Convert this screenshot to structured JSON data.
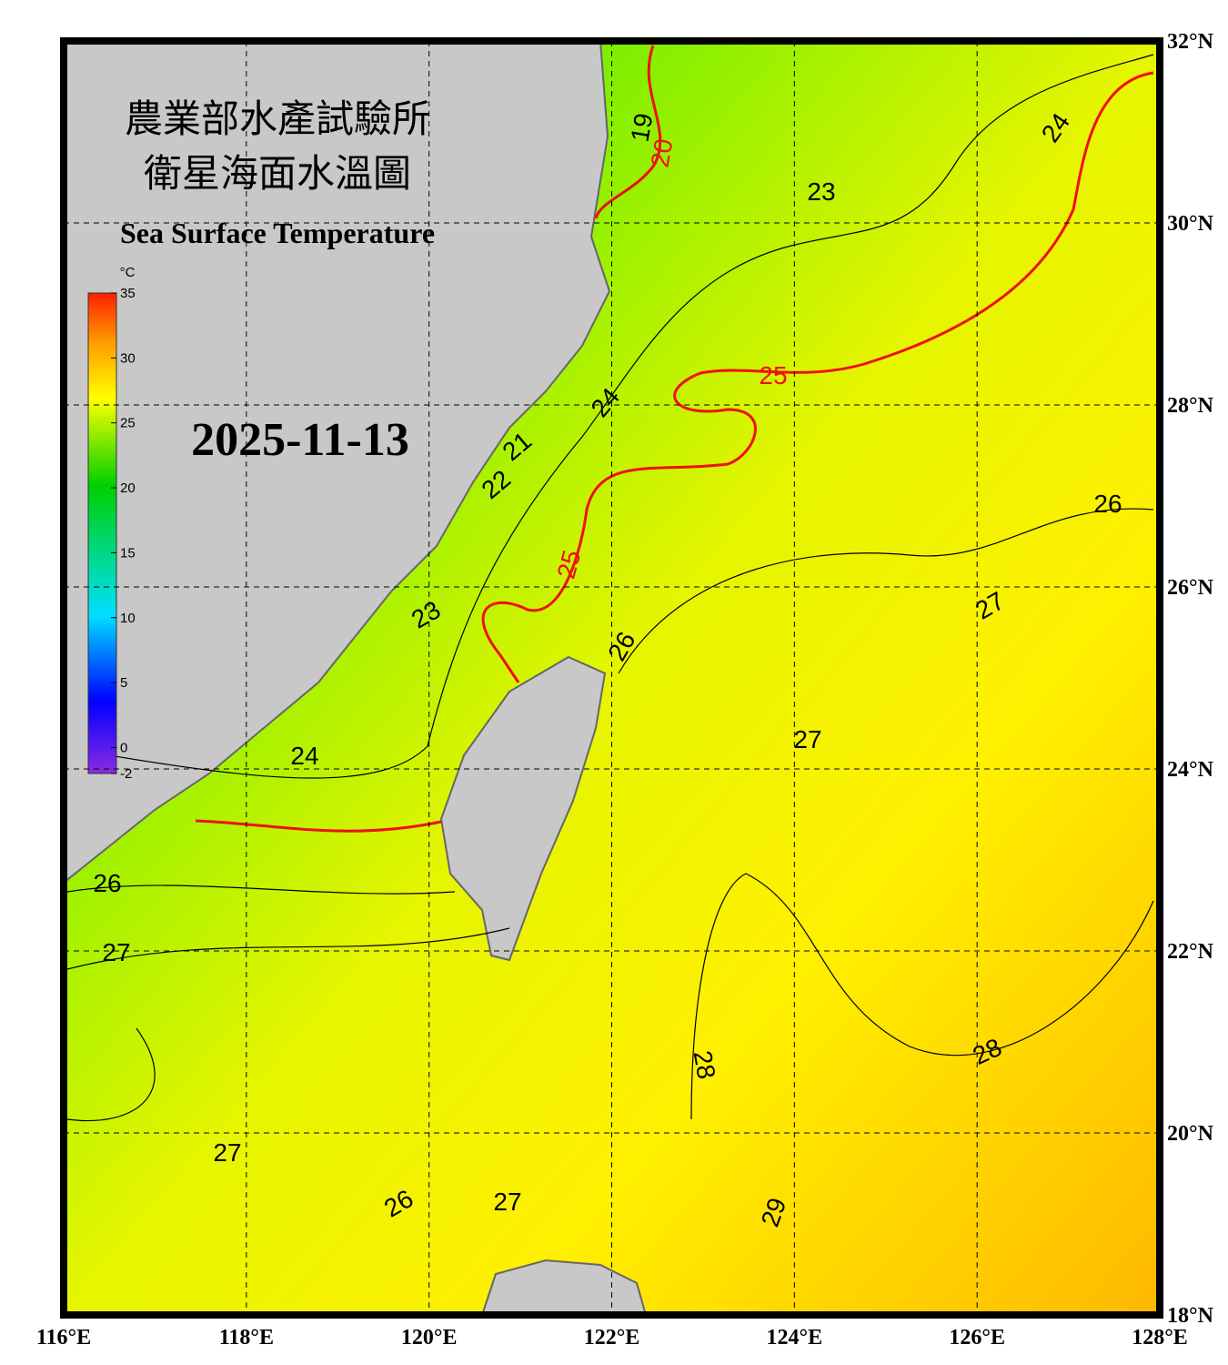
{
  "map": {
    "title_zh_line1": "農業部水產試驗所",
    "title_zh_line2": "衛星海面水溫圖",
    "title_en": "Sea Surface Temperature",
    "date": "2025-11-13",
    "lon_range": [
      116,
      128
    ],
    "lat_range": [
      18,
      32
    ],
    "lon_ticks": [
      {
        "value": 116,
        "label": "116°E"
      },
      {
        "value": 118,
        "label": "118°E"
      },
      {
        "value": 120,
        "label": "120°E"
      },
      {
        "value": 122,
        "label": "122°E"
      },
      {
        "value": 124,
        "label": "124°E"
      },
      {
        "value": 126,
        "label": "126°E"
      },
      {
        "value": 128,
        "label": "128°E"
      }
    ],
    "lat_ticks": [
      {
        "value": 18,
        "label": "18°N"
      },
      {
        "value": 20,
        "label": "20°N"
      },
      {
        "value": 22,
        "label": "22°N"
      },
      {
        "value": 24,
        "label": "24°N"
      },
      {
        "value": 26,
        "label": "26°N"
      },
      {
        "value": 28,
        "label": "28°N"
      },
      {
        "value": 30,
        "label": "30°N"
      },
      {
        "value": 32,
        "label": "32°N"
      }
    ],
    "grid": true,
    "colorbar": {
      "unit": "°C",
      "range": [
        -2,
        35
      ],
      "ticks": [
        35,
        30,
        25,
        20,
        15,
        10,
        5,
        0,
        -2
      ]
    },
    "contour_color": "#000000",
    "highlight_contours": [
      20,
      25
    ],
    "highlight_color": "#ee1111",
    "contour_labels": [
      19,
      20,
      23,
      24,
      25,
      24,
      21,
      22,
      26,
      25,
      23,
      26,
      27,
      27,
      24,
      26,
      27,
      28,
      28,
      27,
      26,
      27,
      29
    ]
  }
}
